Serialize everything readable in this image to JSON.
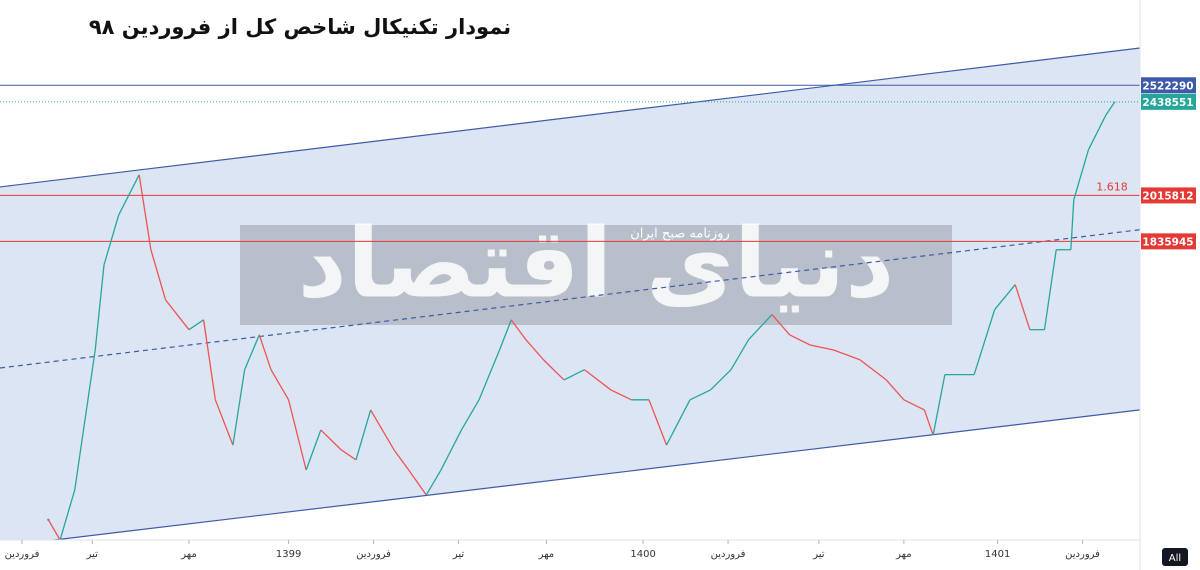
{
  "chart_data": {
    "type": "line",
    "title": "نمودار تکنیکال شاخص کل از فروردین ۹۸",
    "log_scale": true,
    "xlim": [
      -0.75,
      38.16
    ],
    "ylim": [
      1000000,
      3000000
    ],
    "xticks": [
      {
        "value": 0,
        "label": "فروردین"
      },
      {
        "value": 2.4,
        "label": "تیر"
      },
      {
        "value": 5.7,
        "label": "مهر"
      },
      {
        "value": 9.1,
        "label": "1399"
      },
      {
        "value": 12.0,
        "label": "فروردین"
      },
      {
        "value": 14.9,
        "label": "تیر"
      },
      {
        "value": 17.9,
        "label": "مهر"
      },
      {
        "value": 21.2,
        "label": "1400"
      },
      {
        "value": 24.1,
        "label": "فروردین"
      },
      {
        "value": 27.2,
        "label": "تیر"
      },
      {
        "value": 30.1,
        "label": "مهر"
      },
      {
        "value": 33.3,
        "label": "1401"
      },
      {
        "value": 36.2,
        "label": "فروردین"
      }
    ],
    "up_color": "#26a69a",
    "down_color": "#ef5350",
    "x": [
      0.9,
      1.3,
      1.8,
      2.5,
      2.8,
      3.3,
      4.0,
      4.4,
      4.9,
      5.7,
      6.2,
      6.6,
      7.2,
      7.6,
      8.1,
      8.5,
      9.1,
      9.7,
      10.2,
      10.9,
      11.4,
      11.9,
      12.7,
      13.2,
      13.8,
      14.3,
      15.0,
      15.6,
      16.3,
      16.7,
      17.2,
      17.8,
      18.5,
      19.2,
      20.1,
      20.8,
      21.4,
      22.0,
      22.8,
      23.5,
      24.2,
      24.8,
      25.6,
      26.2,
      26.9,
      27.7,
      28.6,
      29.5,
      30.1,
      30.8,
      31.1,
      31.5,
      32.5,
      33.2,
      33.9,
      34.4,
      34.9,
      35.3,
      35.8,
      35.9,
      36.4,
      37.0,
      37.3
    ],
    "values": [
      1042000,
      1000000,
      1107000,
      1472000,
      1750000,
      1937000,
      2102000,
      1805000,
      1630000,
      1534000,
      1565000,
      1330000,
      1213000,
      1414000,
      1518000,
      1414000,
      1330000,
      1153000,
      1251000,
      1201000,
      1177000,
      1303000,
      1201000,
      1153000,
      1096000,
      1153000,
      1251000,
      1330000,
      1472000,
      1565000,
      1503000,
      1443000,
      1385000,
      1414000,
      1357000,
      1330000,
      1330000,
      1213000,
      1330000,
      1357000,
      1414000,
      1503000,
      1582000,
      1518000,
      1487000,
      1472000,
      1443000,
      1385000,
      1330000,
      1303000,
      1238000,
      1400000,
      1400000,
      1598000,
      1681000,
      1534000,
      1534000,
      1805000,
      1805000,
      1998000,
      2212000,
      2375000,
      2438551
    ],
    "channels": [
      {
        "x": [
          -0.75,
          38.16
        ],
        "values": [
          2051000,
          2721000
        ],
        "color": "#3f5aa8",
        "dashed": false
      },
      {
        "x": [
          1.1,
          38.16
        ],
        "values": [
          1000000,
          1303000
        ],
        "color": "#3f5aa8",
        "dashed": false
      },
      {
        "x": [
          -0.75,
          38.16
        ],
        "values": [
          1419000,
          1880000
        ],
        "color": "#3f5aa8",
        "dashed": true
      }
    ],
    "channel_fill": "#dbe5f4",
    "levels": [
      {
        "value": 2522290,
        "color": "#3f5aa8",
        "dashed": false
      },
      {
        "value": 2438551,
        "color": "#26a69a",
        "dashed": true
      },
      {
        "value": 2015812,
        "color": "#e53935",
        "dashed": false,
        "note": "1.618"
      },
      {
        "value": 1835945,
        "color": "#e53935",
        "dashed": false
      }
    ],
    "watermark": {
      "logo": "دنیای اقتصاد",
      "subtitle": "روزنامه صبح ایران"
    },
    "range_button": "All"
  }
}
